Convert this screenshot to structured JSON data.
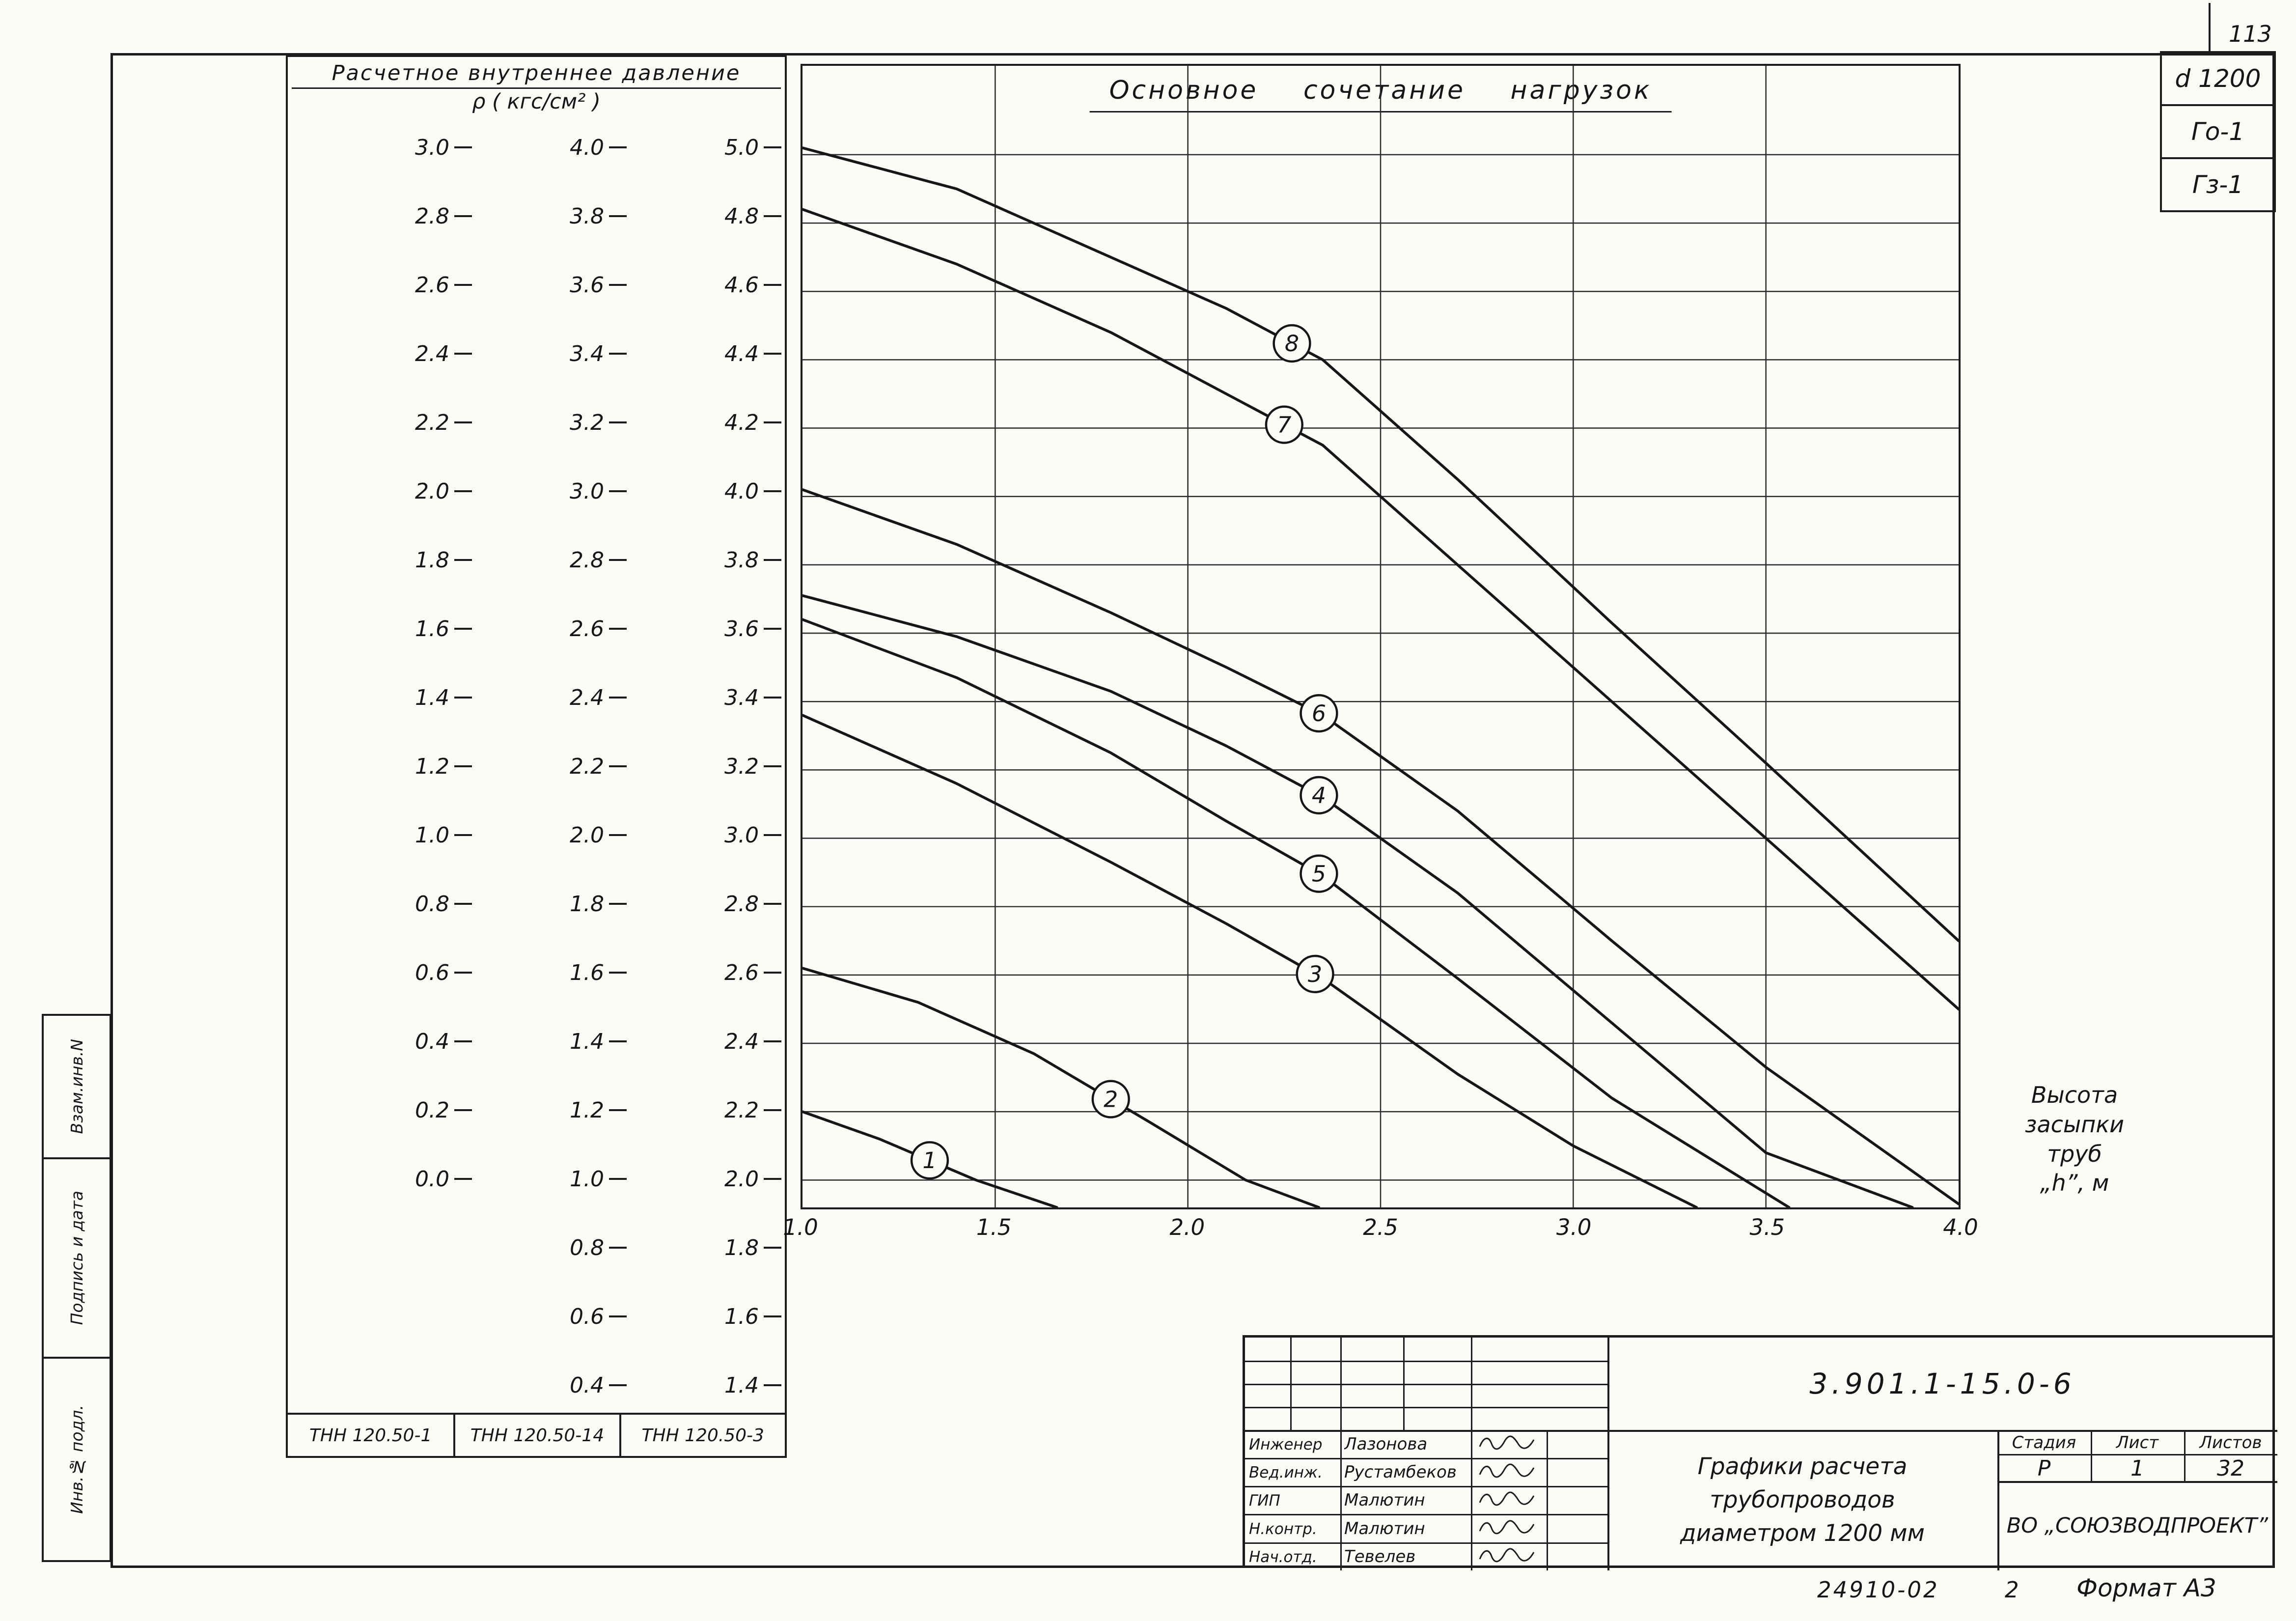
{
  "page_number": "113",
  "corner_labels": [
    "d 1200",
    "Го-1",
    "Гз-1"
  ],
  "side_strip": [
    "Взам.инв.N",
    "Подпись и дата",
    "Инв.№ подл."
  ],
  "pressure_table": {
    "title_line1": "Расчетное внутреннее давление",
    "title_line2": "ρ ( кгс/см² )",
    "columns": [
      {
        "model": "ТНН 120.50-1",
        "ticks": [
          "3.0",
          "2.8",
          "2.6",
          "2.4",
          "2.2",
          "2.0",
          "1.8",
          "1.6",
          "1.4",
          "1.2",
          "1.0",
          "0.8",
          "0.6",
          "0.4",
          "0.2",
          "0.0"
        ]
      },
      {
        "model": "ТНН 120.50-14",
        "ticks": [
          "4.0",
          "3.8",
          "3.6",
          "3.4",
          "3.2",
          "3.0",
          "2.8",
          "2.6",
          "2.4",
          "2.2",
          "2.0",
          "1.8",
          "1.6",
          "1.4",
          "1.2",
          "1.0",
          "0.8",
          "0.6",
          "0.4"
        ]
      },
      {
        "model": "ТНН 120.50-3",
        "ticks": [
          "5.0",
          "4.8",
          "4.6",
          "4.4",
          "4.2",
          "4.0",
          "3.8",
          "3.6",
          "3.4",
          "3.2",
          "3.0",
          "2.8",
          "2.6",
          "2.4",
          "2.2",
          "2.0",
          "1.8",
          "1.6",
          "1.4"
        ]
      }
    ]
  },
  "chart_data": {
    "type": "line",
    "title": "Основное сочетание нагрузок",
    "xlabel": "Высота засыпки труб „h”, м",
    "xlabel_lines": [
      "Высота",
      "засыпки",
      "труб",
      "„h”, м"
    ],
    "ylabel": "Расчетное внутреннее давление ρ ( кгс/см² )",
    "x_ticks": [
      "1.0",
      "1.5",
      "2.0",
      "2.5",
      "3.0",
      "3.5",
      "4.0"
    ],
    "x_tick_values": [
      1.0,
      1.5,
      2.0,
      2.5,
      3.0,
      3.5,
      4.0
    ],
    "xlim": [
      1.0,
      4.0
    ],
    "ylim": [
      1.92,
      5.26
    ],
    "grid": true,
    "y_gridlines": {
      "start": 5.0,
      "step": -0.2,
      "count": 16
    },
    "series": [
      {
        "name": "8",
        "label_x": 2.27,
        "points": [
          [
            1.0,
            5.02
          ],
          [
            1.4,
            4.9
          ],
          [
            1.8,
            4.7
          ],
          [
            2.1,
            4.55
          ],
          [
            2.35,
            4.4
          ],
          [
            2.7,
            4.05
          ],
          [
            3.1,
            3.63
          ],
          [
            3.5,
            3.22
          ],
          [
            4.0,
            2.7
          ]
        ]
      },
      {
        "name": "7",
        "label_x": 2.25,
        "points": [
          [
            1.0,
            4.84
          ],
          [
            1.4,
            4.68
          ],
          [
            1.8,
            4.48
          ],
          [
            2.1,
            4.3
          ],
          [
            2.35,
            4.15
          ],
          [
            2.7,
            3.8
          ],
          [
            3.1,
            3.4
          ],
          [
            3.5,
            3.0
          ],
          [
            4.0,
            2.5
          ]
        ]
      },
      {
        "name": "6",
        "label_x": 2.34,
        "points": [
          [
            1.0,
            4.02
          ],
          [
            1.4,
            3.86
          ],
          [
            1.8,
            3.66
          ],
          [
            2.1,
            3.5
          ],
          [
            2.35,
            3.36
          ],
          [
            2.7,
            3.08
          ],
          [
            3.1,
            2.7
          ],
          [
            3.5,
            2.33
          ],
          [
            4.0,
            1.93
          ]
        ]
      },
      {
        "name": "4",
        "label_x": 2.34,
        "points": [
          [
            1.0,
            3.71
          ],
          [
            1.4,
            3.59
          ],
          [
            1.8,
            3.43
          ],
          [
            2.1,
            3.27
          ],
          [
            2.35,
            3.12
          ],
          [
            2.7,
            2.84
          ],
          [
            3.1,
            2.46
          ],
          [
            3.5,
            2.08
          ],
          [
            3.88,
            1.92
          ]
        ]
      },
      {
        "name": "5",
        "label_x": 2.34,
        "points": [
          [
            1.0,
            3.64
          ],
          [
            1.4,
            3.47
          ],
          [
            1.8,
            3.25
          ],
          [
            2.1,
            3.05
          ],
          [
            2.35,
            2.89
          ],
          [
            2.7,
            2.59
          ],
          [
            3.1,
            2.24
          ],
          [
            3.56,
            1.92
          ]
        ]
      },
      {
        "name": "3",
        "label_x": 2.33,
        "points": [
          [
            1.0,
            3.36
          ],
          [
            1.4,
            3.16
          ],
          [
            1.8,
            2.93
          ],
          [
            2.1,
            2.75
          ],
          [
            2.35,
            2.59
          ],
          [
            2.7,
            2.31
          ],
          [
            3.0,
            2.1
          ],
          [
            3.32,
            1.92
          ]
        ]
      },
      {
        "name": "2",
        "label_x": 1.8,
        "points": [
          [
            1.0,
            2.62
          ],
          [
            1.3,
            2.52
          ],
          [
            1.6,
            2.37
          ],
          [
            1.9,
            2.17
          ],
          [
            2.15,
            2.0
          ],
          [
            2.34,
            1.92
          ]
        ]
      },
      {
        "name": "1",
        "label_x": 1.33,
        "points": [
          [
            1.0,
            2.2
          ],
          [
            1.2,
            2.12
          ],
          [
            1.45,
            2.0
          ],
          [
            1.66,
            1.92
          ]
        ]
      }
    ]
  },
  "title_block": {
    "doc_number": "3.901.1-15.0-6",
    "signatures": [
      {
        "role": "Инженер",
        "name": "Лазонова"
      },
      {
        "role": "Вед.инж.",
        "name": "Рустамбеков"
      },
      {
        "role": "ГИП",
        "name": "Малютин"
      },
      {
        "role": "Н.контр.",
        "name": "Малютин"
      },
      {
        "role": "Нач.отд.",
        "name": "Тевелев"
      }
    ],
    "project_title_lines": [
      "Графики расчета",
      "трубопроводов",
      "диаметром 1200 мм"
    ],
    "stage_headers": [
      "Стадия",
      "Лист",
      "Листов"
    ],
    "stage_values": [
      "Р",
      "1",
      "32"
    ],
    "organization": "ВО „СОЮЗВОДПРОЕКТ”"
  },
  "footer": {
    "code": "24910-02",
    "number": "2",
    "format": "Формат А3"
  }
}
